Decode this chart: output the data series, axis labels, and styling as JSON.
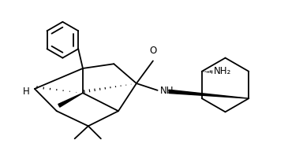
{
  "bg_color": "#ffffff",
  "line_color": "#000000",
  "lw": 1.3,
  "fig_width": 3.84,
  "fig_height": 2.06,
  "dpi": 100,
  "xlim": [
    0,
    10.0
  ],
  "ylim": [
    0,
    5.36
  ]
}
